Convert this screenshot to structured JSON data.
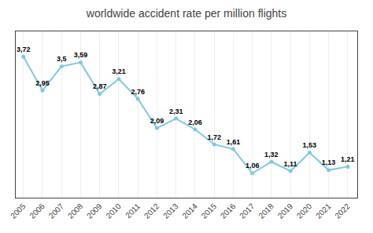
{
  "chart_data": {
    "type": "line",
    "title": "worldwide accident rate per million flights",
    "x": [
      2005,
      2006,
      2007,
      2008,
      2009,
      2010,
      2011,
      2012,
      2013,
      2014,
      2015,
      2016,
      2017,
      2018,
      2019,
      2020,
      2021,
      2022
    ],
    "values": [
      3.72,
      2.95,
      3.5,
      3.59,
      2.87,
      3.21,
      2.76,
      2.09,
      2.31,
      2.06,
      1.72,
      1.61,
      1.06,
      1.32,
      1.11,
      1.53,
      1.13,
      1.21
    ],
    "value_labels": [
      "3,72",
      "2,95",
      "3,5",
      "3,59",
      "2,87",
      "3,21",
      "2,76",
      "2,09",
      "2,31",
      "2,06",
      "1,72",
      "1,61",
      "1,06",
      "1,32",
      "1,11",
      "1,53",
      "1,13",
      "1,21"
    ],
    "data_labels": true,
    "color": "#7EC8E3",
    "marker": "circle",
    "line_style": "solid",
    "xlim": [
      2004.6,
      2022.5
    ],
    "xticks": [
      2005,
      2006,
      2007,
      2008,
      2009,
      2010,
      2011,
      2012,
      2013,
      2014,
      2015,
      2016,
      2017,
      2018,
      2019,
      2020,
      2021,
      2022
    ],
    "ylim": [
      0.5,
      4.3
    ],
    "tick_labels": "x",
    "grid": true
  }
}
